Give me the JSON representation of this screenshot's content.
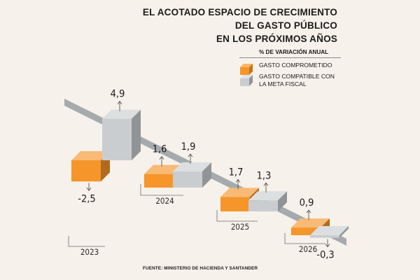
{
  "title_lines": [
    "EL ACOTADO ESPACIO DE CRECIMIENTO",
    "DEL GASTO PÚBLICO",
    "EN LOS PRÓXIMOS AÑOS"
  ],
  "legend": {
    "header": "% DE VARIACIÓN ANUAL",
    "items": [
      {
        "label": "GASTO COMPROMETIDO"
      },
      {
        "label_lines": [
          "GASTO COMPATIBLE CON",
          "LA META FISCAL"
        ]
      }
    ]
  },
  "source": "FUENTE: MINISTERIO DE HACIENDA Y SANTANDER",
  "colors": {
    "comprometido": "#f5952a",
    "compatible": "#c9cdd0",
    "background": "#f6f1ea"
  },
  "chart_data": {
    "type": "bar",
    "categories": [
      "2023",
      "2024",
      "2025",
      "2026"
    ],
    "series": [
      {
        "name": "GASTO COMPROMETIDO",
        "values": [
          -2.5,
          1.6,
          1.7,
          0.9
        ],
        "labels": [
          "-2,5",
          "1,6",
          "1,7",
          "0,9"
        ]
      },
      {
        "name": "GASTO COMPATIBLE CON LA META FISCAL",
        "values": [
          4.9,
          1.9,
          1.3,
          -0.3
        ],
        "labels": [
          "4,9",
          "1,9",
          "1,3",
          "-0,3"
        ]
      }
    ]
  }
}
